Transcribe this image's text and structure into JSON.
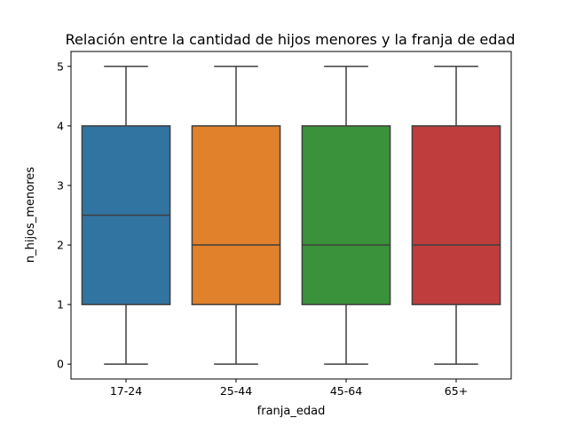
{
  "chart_data": {
    "type": "box",
    "title": "Relación entre la cantidad de hijos menores y la franja de edad",
    "xlabel": "franja_edad",
    "ylabel": "n_hijos_menores",
    "ylim": [
      -0.25,
      5.25
    ],
    "yticks": [
      0,
      1,
      2,
      3,
      4,
      5
    ],
    "grid": false,
    "categories": [
      "17-24",
      "25-44",
      "45-64",
      "65+"
    ],
    "boxes": [
      {
        "category": "17-24",
        "min": 0,
        "q1": 1,
        "median": 2.5,
        "q3": 4,
        "max": 5,
        "color": "#3274a1"
      },
      {
        "category": "25-44",
        "min": 0,
        "q1": 1,
        "median": 2,
        "q3": 4,
        "max": 5,
        "color": "#e1812c"
      },
      {
        "category": "45-64",
        "min": 0,
        "q1": 1,
        "median": 2,
        "q3": 4,
        "max": 5,
        "color": "#3a923a"
      },
      {
        "category": "65+",
        "min": 0,
        "q1": 1,
        "median": 2,
        "q3": 4,
        "max": 5,
        "color": "#c03d3e"
      }
    ],
    "line_color": "#3f3f3f"
  }
}
